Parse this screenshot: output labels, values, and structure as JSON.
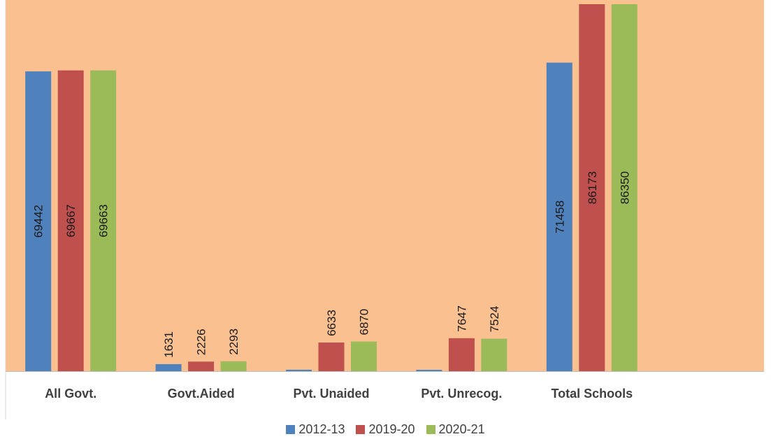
{
  "chart_data": {
    "type": "bar",
    "title": "",
    "xlabel": "",
    "ylabel": "",
    "categories": [
      "All Govt.",
      "Govt.Aided",
      "Pvt. Unaided",
      "Pvt. Unrecog.",
      "Total Schools"
    ],
    "series": [
      {
        "name": "2012-13",
        "color": "#4f81bd",
        "values": [
          69442,
          1631,
          340,
          320,
          71458
        ],
        "labels": [
          "69442",
          "1631",
          "",
          "",
          "71458"
        ]
      },
      {
        "name": "2019-20",
        "color": "#c0504d",
        "values": [
          69667,
          2226,
          6633,
          7647,
          86173
        ],
        "labels": [
          "69667",
          "2226",
          "6633",
          "7647",
          "86173"
        ]
      },
      {
        "name": "2020-21",
        "color": "#9bbb59",
        "values": [
          69663,
          2293,
          6870,
          7524,
          86350
        ],
        "labels": [
          "69663",
          "2293",
          "6870",
          "7524",
          "86350"
        ]
      }
    ],
    "ylim": [
      0,
      85000
    ],
    "plot_background": "#fac090",
    "grid": false,
    "legend_position": "bottom"
  }
}
